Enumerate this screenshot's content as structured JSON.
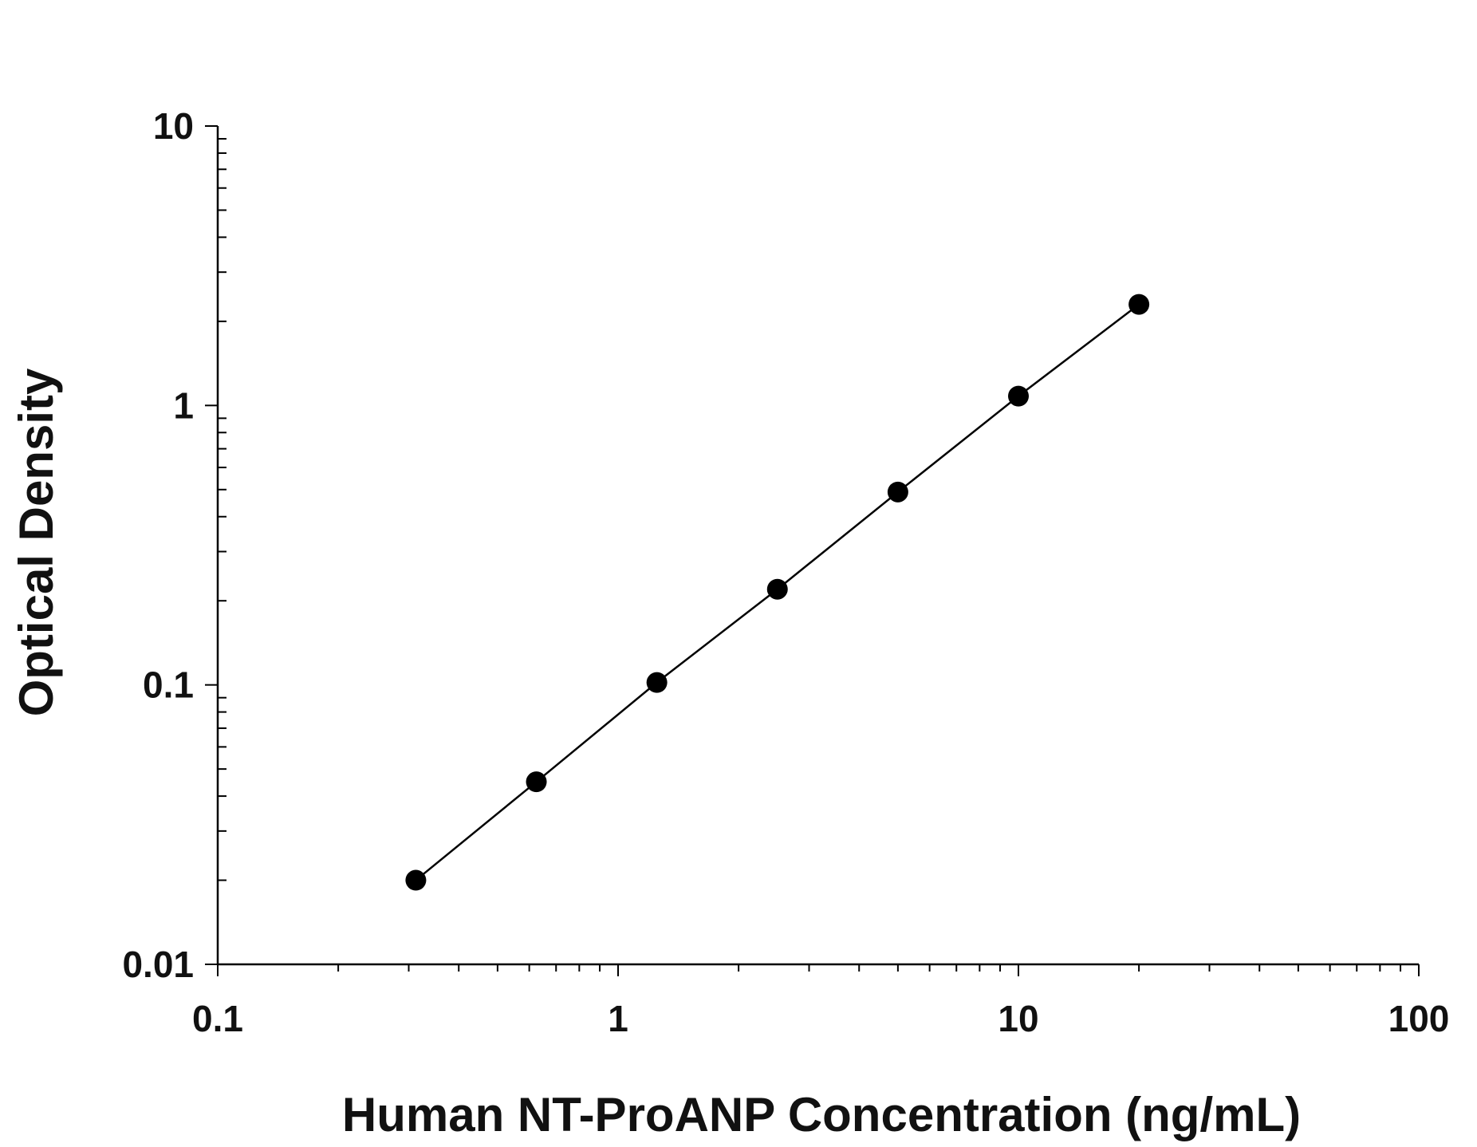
{
  "chart_data": {
    "type": "scatter",
    "title": "",
    "xlabel": "Human NT-ProANP Concentration (ng/mL)",
    "ylabel": "Optical Density",
    "x_scale": "log",
    "y_scale": "log",
    "xlim": [
      0.1,
      100
    ],
    "ylim": [
      0.01,
      10
    ],
    "x_ticks": [
      0.1,
      1,
      10,
      100
    ],
    "x_tick_labels": [
      "0.1",
      "1",
      "10",
      "100"
    ],
    "y_ticks": [
      0.01,
      0.1,
      1,
      10
    ],
    "y_tick_labels": [
      "0.01",
      "0.1",
      "1",
      "10"
    ],
    "grid": false,
    "legend": "none",
    "series": [
      {
        "x": [
          0.3125,
          0.625,
          1.25,
          2.5,
          5,
          10,
          20
        ],
        "y": [
          0.02,
          0.045,
          0.102,
          0.22,
          0.49,
          1.08,
          2.3
        ],
        "marker": "filled-circle",
        "line": "connected",
        "color": "#000000"
      }
    ]
  }
}
